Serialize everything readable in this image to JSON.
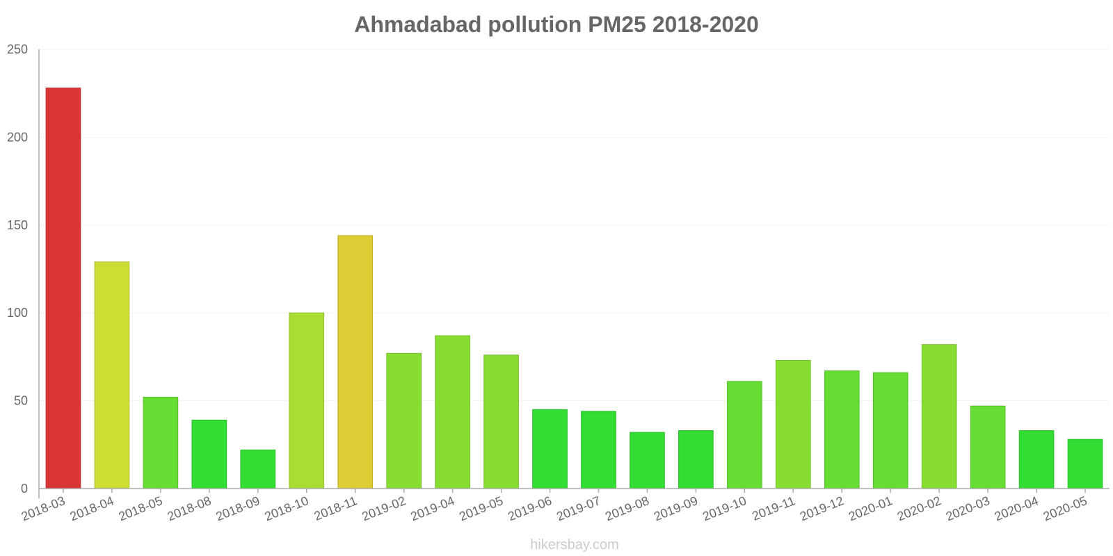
{
  "chart_data": {
    "type": "bar",
    "title": "Ahmadabad pollution PM25 2018-2020",
    "xlabel": "",
    "ylabel": "",
    "ylim": [
      0,
      250
    ],
    "yticks": [
      0,
      50,
      100,
      150,
      200,
      250
    ],
    "grid": true,
    "categories": [
      "2018-03",
      "2018-04",
      "2018-05",
      "2018-08",
      "2018-09",
      "2018-10",
      "2018-11",
      "2019-02",
      "2019-04",
      "2019-05",
      "2019-06",
      "2019-07",
      "2019-08",
      "2019-09",
      "2019-10",
      "2019-11",
      "2019-12",
      "2020-01",
      "2020-02",
      "2020-03",
      "2020-04",
      "2020-05"
    ],
    "values": [
      228,
      129,
      52,
      39,
      22,
      100,
      144,
      77,
      87,
      76,
      45,
      44,
      32,
      33,
      61,
      73,
      67,
      66,
      82,
      47,
      33,
      28
    ],
    "colors": [
      "#db3535",
      "#ccdd33",
      "#66dd33",
      "#33dd33",
      "#33dd33",
      "#aadd33",
      "#ddcc33",
      "#88dd33",
      "#88dd33",
      "#88dd33",
      "#33dd33",
      "#33dd33",
      "#33dd33",
      "#33dd33",
      "#66dd33",
      "#88dd33",
      "#66dd33",
      "#66dd33",
      "#88dd33",
      "#66dd33",
      "#33dd33",
      "#33dd33"
    ]
  },
  "watermark": "hikersbay.com"
}
